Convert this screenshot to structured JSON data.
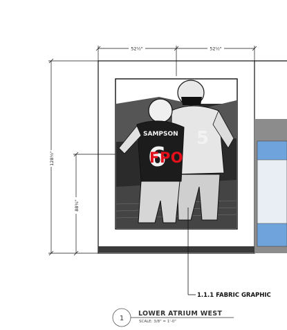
{
  "dimensions": {
    "width_left": "52½\"",
    "width_right": "52½\"",
    "height_total": "128½\"",
    "height_to_graphic": "88¾\""
  },
  "graphic": {
    "placeholder": "FPO",
    "jersey_name": "SAMPSON",
    "jersey_number": "6"
  },
  "callout": {
    "label": "1.1.1 FABRIC GRAPHIC"
  },
  "drawing_title": {
    "number": "1",
    "title": "LOWER ATRIUM WEST",
    "scale": "SCALE: 3/8\" = 1'-0\""
  },
  "colors": {
    "line": "#111111",
    "wall_gray": "#8c8c8c",
    "base_band": "#3a3a3a",
    "glass_blue": "#6fa3dc",
    "glass_light": "#e9eef5",
    "fpo_red": "#e3101c"
  }
}
